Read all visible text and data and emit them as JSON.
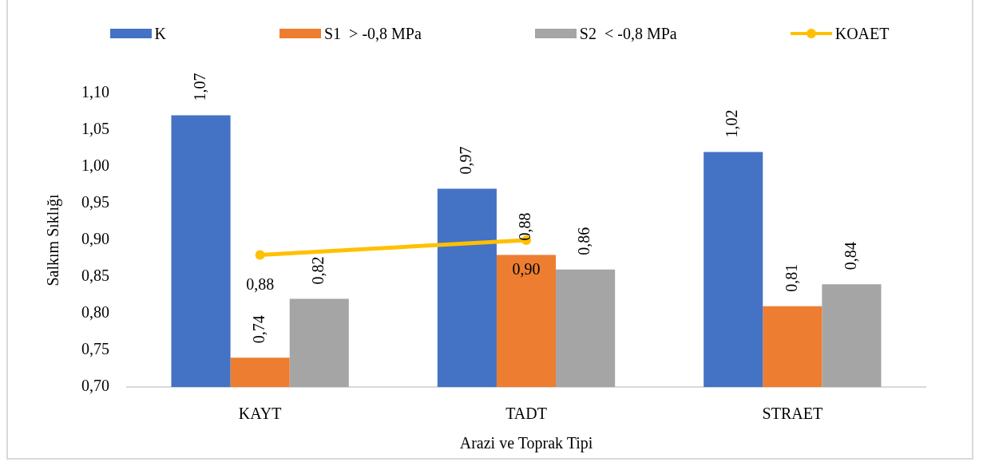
{
  "chart_data": {
    "type": "bar",
    "xlabel": "Arazi ve Toprak Tipi",
    "ylabel": "Salkım Sıklığı",
    "legend": "top",
    "categories": [
      "KAYT",
      "TADT",
      "STRAET"
    ],
    "series": [
      {
        "name": "K",
        "color": "#4472c4",
        "values": [
          1.07,
          0.97,
          1.02
        ],
        "value_labels": [
          "1,07",
          "0,97",
          "1,02"
        ]
      },
      {
        "name": "S1  > -0,8 MPa",
        "color": "#ed7d31",
        "values": [
          0.74,
          0.88,
          0.81
        ],
        "value_labels": [
          "0,74",
          "0,88",
          "0,81"
        ]
      },
      {
        "name": "S2  < -0,8 MPa",
        "color": "#a5a5a5",
        "values": [
          0.82,
          0.86,
          0.84
        ],
        "value_labels": [
          "0,82",
          "0,86",
          "0,84"
        ]
      },
      {
        "name": "KOAET",
        "type": "line",
        "color": "#ffc000",
        "marker": "circle",
        "values": [
          0.88,
          0.9,
          null
        ],
        "value_labels": [
          "0,88",
          "0,90",
          null
        ]
      }
    ],
    "ylim": [
      0.7,
      1.1
    ],
    "yticks": [
      {
        "value": 0.7,
        "label": "0,70"
      },
      {
        "value": 0.75,
        "label": "0,75"
      },
      {
        "value": 0.8,
        "label": "0,80"
      },
      {
        "value": 0.85,
        "label": "0,85"
      },
      {
        "value": 0.9,
        "label": "0,90"
      },
      {
        "value": 0.95,
        "label": "0,95"
      },
      {
        "value": 1.0,
        "label": "1,00"
      },
      {
        "value": 1.05,
        "label": "1,05"
      },
      {
        "value": 1.1,
        "label": "1,10"
      }
    ]
  }
}
